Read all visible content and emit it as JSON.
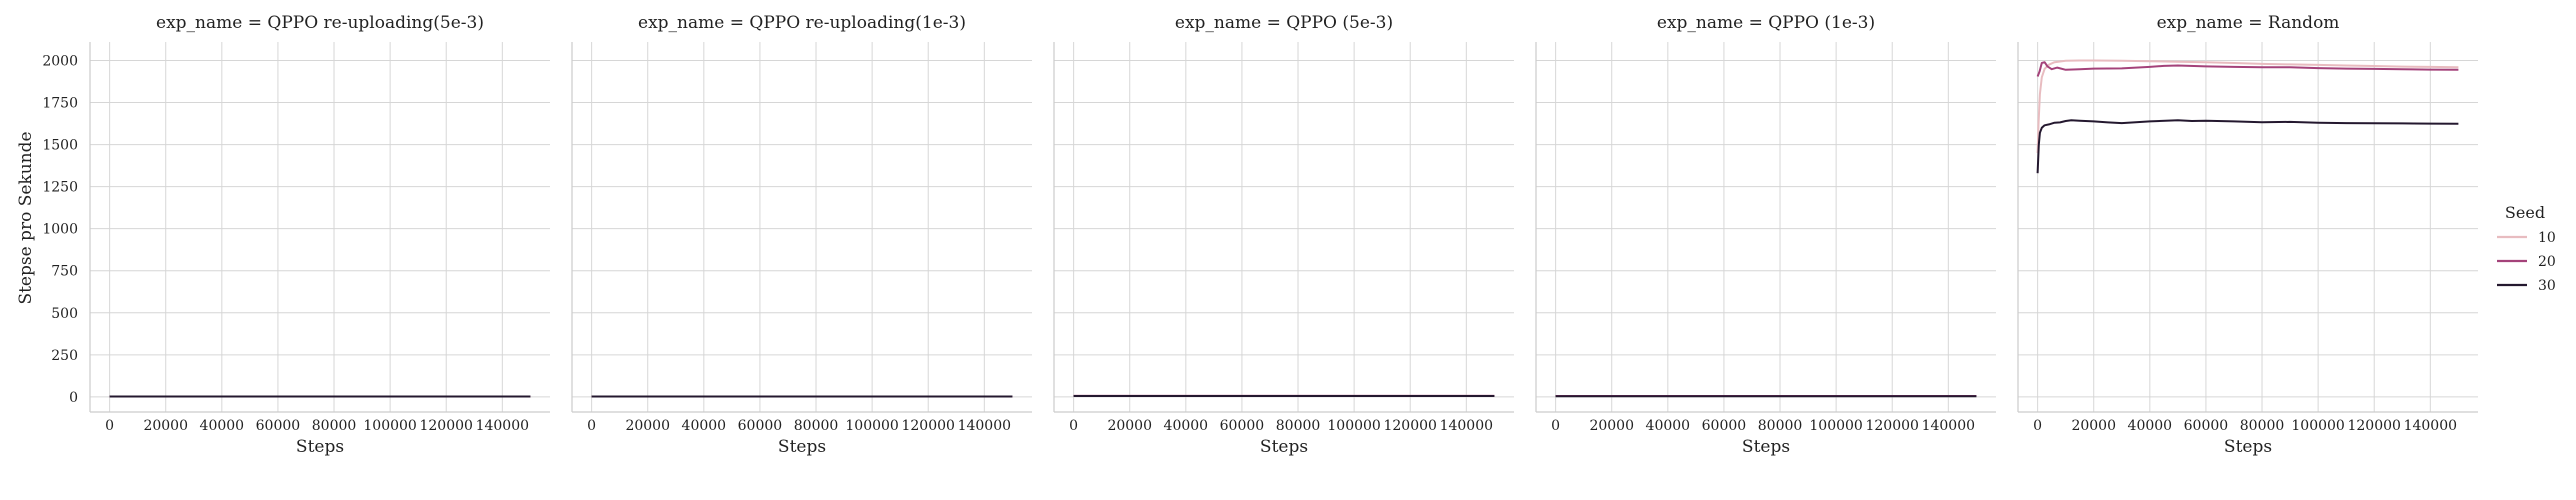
{
  "chart_data": {
    "type": "line",
    "ylabel": "Stepse pro Sekunde",
    "ylim": [
      -90,
      2110
    ],
    "xlim": [
      -7000,
      157000
    ],
    "yticks": [
      0,
      250,
      500,
      750,
      1000,
      1250,
      1500,
      1750,
      2000
    ],
    "xticks": [
      0,
      20000,
      40000,
      60000,
      80000,
      100000,
      120000,
      140000
    ],
    "grid": true,
    "legend": {
      "title": "Seed",
      "placement": "right",
      "entries": [
        {
          "label": "10",
          "color": "#e8bcc0"
        },
        {
          "label": "20",
          "color": "#a4427a"
        },
        {
          "label": "30",
          "color": "#24182f"
        }
      ]
    },
    "panels": [
      {
        "title": "exp_name = QPPO re-uploading(5e-3)",
        "xlabel": "Steps",
        "series": [
          {
            "name": "10",
            "color": "#e8bcc0",
            "x": [
              0,
              150000
            ],
            "y": [
              2,
              2
            ]
          },
          {
            "name": "20",
            "color": "#a4427a",
            "x": [
              0,
              150000
            ],
            "y": [
              2,
              2
            ]
          },
          {
            "name": "30",
            "color": "#24182f",
            "x": [
              0,
              150000
            ],
            "y": [
              2,
              2
            ]
          }
        ]
      },
      {
        "title": "exp_name = QPPO re-uploading(1e-3)",
        "xlabel": "Steps",
        "series": [
          {
            "name": "10",
            "color": "#e8bcc0",
            "x": [
              0,
              150000
            ],
            "y": [
              2,
              2
            ]
          },
          {
            "name": "20",
            "color": "#a4427a",
            "x": [
              0,
              150000
            ],
            "y": [
              2,
              2
            ]
          },
          {
            "name": "30",
            "color": "#24182f",
            "x": [
              0,
              150000
            ],
            "y": [
              2,
              2
            ]
          }
        ]
      },
      {
        "title": "exp_name = QPPO (5e-3)",
        "xlabel": "Steps",
        "series": [
          {
            "name": "10",
            "color": "#e8bcc0",
            "x": [
              0,
              150000
            ],
            "y": [
              6,
              6
            ]
          },
          {
            "name": "20",
            "color": "#a4427a",
            "x": [
              0,
              150000
            ],
            "y": [
              6,
              6
            ]
          },
          {
            "name": "30",
            "color": "#24182f",
            "x": [
              0,
              150000
            ],
            "y": [
              5,
              5
            ]
          }
        ]
      },
      {
        "title": "exp_name = QPPO (1e-3)",
        "xlabel": "Steps",
        "series": [
          {
            "name": "10",
            "color": "#e8bcc0",
            "x": [
              0,
              150000
            ],
            "y": [
              5,
              5
            ]
          },
          {
            "name": "20",
            "color": "#a4427a",
            "x": [
              0,
              150000
            ],
            "y": [
              5,
              5
            ]
          },
          {
            "name": "30",
            "color": "#24182f",
            "x": [
              0,
              150000
            ],
            "y": [
              4,
              4
            ]
          }
        ]
      },
      {
        "title": "exp_name = Random",
        "xlabel": "Steps",
        "series": [
          {
            "name": "10",
            "color": "#e8bcc0",
            "x": [
              0,
              300,
              800,
              1500,
              2500,
              4000,
              6000,
              10000,
              15000,
              20000,
              30000,
              40000,
              50000,
              60000,
              70000,
              80000,
              90000,
              100000,
              110000,
              120000,
              130000,
              140000,
              150000
            ],
            "y": [
              1450,
              1620,
              1800,
              1900,
              1950,
              1975,
              1990,
              1998,
              2000,
              2000,
              1998,
              1996,
              1993,
              1990,
              1985,
              1980,
              1977,
              1974,
              1970,
              1967,
              1964,
              1962,
              1960
            ]
          },
          {
            "name": "20",
            "color": "#a4427a",
            "x": [
              0,
              700,
              1500,
              2500,
              3500,
              5000,
              7000,
              10000,
              15000,
              20000,
              30000,
              40000,
              45000,
              50000,
              60000,
              70000,
              80000,
              90000,
              100000,
              110000,
              120000,
              130000,
              140000,
              150000
            ],
            "y": [
              1905,
              1935,
              1985,
              1990,
              1965,
              1948,
              1958,
              1945,
              1948,
              1952,
              1953,
              1962,
              1968,
              1970,
              1965,
              1962,
              1960,
              1960,
              1955,
              1952,
              1950,
              1948,
              1946,
              1945
            ]
          },
          {
            "name": "30",
            "color": "#24182f",
            "x": [
              0,
              400,
              800,
              1500,
              2500,
              4000,
              6000,
              8000,
              10000,
              12000,
              15000,
              20000,
              25000,
              30000,
              40000,
              50000,
              55000,
              60000,
              70000,
              80000,
              90000,
              100000,
              110000,
              120000,
              130000,
              140000,
              150000
            ],
            "y": [
              1330,
              1500,
              1570,
              1600,
              1615,
              1620,
              1630,
              1632,
              1640,
              1645,
              1642,
              1638,
              1632,
              1628,
              1638,
              1645,
              1640,
              1642,
              1638,
              1633,
              1635,
              1630,
              1628,
              1627,
              1626,
              1625,
              1624
            ]
          }
        ]
      }
    ]
  }
}
